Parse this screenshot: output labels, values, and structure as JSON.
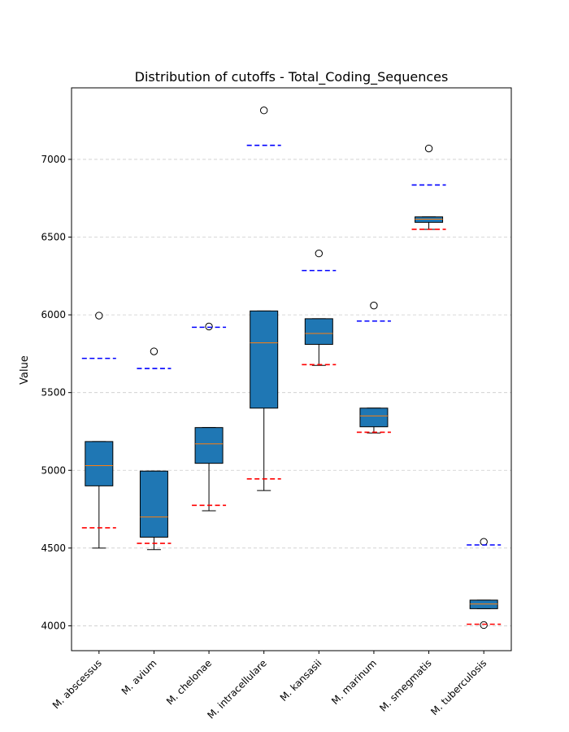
{
  "chart_data": {
    "type": "box",
    "title": "Distribution of cutoffs - Total_Coding_Sequences",
    "xlabel": "",
    "ylabel": "Value",
    "ylim": [
      3840,
      7460
    ],
    "yticks": [
      4000,
      4500,
      5000,
      5500,
      6000,
      6500,
      7000
    ],
    "grid": "horizontal dashed",
    "colors": {
      "box_fill": "#1f77b4",
      "median": "#ff7f0e",
      "upper_cutoff": "#0000ff",
      "lower_cutoff": "#ff0000",
      "grid": "#cccccc"
    },
    "categories": [
      "M. abscessus",
      "M. avium",
      "M. chelonae",
      "M. intracellulare",
      "M. kansasii",
      "M. marinum",
      "M. smegmatis",
      "M. tuberculosis"
    ],
    "boxes": [
      {
        "q1": 4900,
        "median": 5030,
        "q3": 5185,
        "whisker_low": 4500,
        "whisker_high": 5185,
        "outliers": [
          5995
        ],
        "upper_cutoff": 5720,
        "lower_cutoff": 4630
      },
      {
        "q1": 4570,
        "median": 4700,
        "q3": 4995,
        "whisker_low": 4490,
        "whisker_high": 4995,
        "outliers": [
          5765
        ],
        "upper_cutoff": 5655,
        "lower_cutoff": 4530
      },
      {
        "q1": 5045,
        "median": 5170,
        "q3": 5275,
        "whisker_low": 4740,
        "whisker_high": 5275,
        "outliers": [
          5925
        ],
        "upper_cutoff": 5920,
        "lower_cutoff": 4775
      },
      {
        "q1": 5400,
        "median": 5820,
        "q3": 6025,
        "whisker_low": 4870,
        "whisker_high": 6025,
        "outliers": [
          7315
        ],
        "upper_cutoff": 7090,
        "lower_cutoff": 4945
      },
      {
        "q1": 5810,
        "median": 5880,
        "q3": 5975,
        "whisker_low": 5675,
        "whisker_high": 5975,
        "outliers": [
          6395
        ],
        "upper_cutoff": 6285,
        "lower_cutoff": 5680
      },
      {
        "q1": 5280,
        "median": 5350,
        "q3": 5400,
        "whisker_low": 5240,
        "whisker_high": 5400,
        "outliers": [
          6060
        ],
        "upper_cutoff": 5960,
        "lower_cutoff": 5245
      },
      {
        "q1": 6595,
        "median": 6615,
        "q3": 6630,
        "whisker_low": 6550,
        "whisker_high": 6630,
        "outliers": [
          7070
        ],
        "upper_cutoff": 6835,
        "lower_cutoff": 6550
      },
      {
        "q1": 4110,
        "median": 4140,
        "q3": 4165,
        "whisker_low": 4110,
        "whisker_high": 4165,
        "outliers": [
          4540,
          4005
        ],
        "upper_cutoff": 4520,
        "lower_cutoff": 4010
      }
    ]
  }
}
